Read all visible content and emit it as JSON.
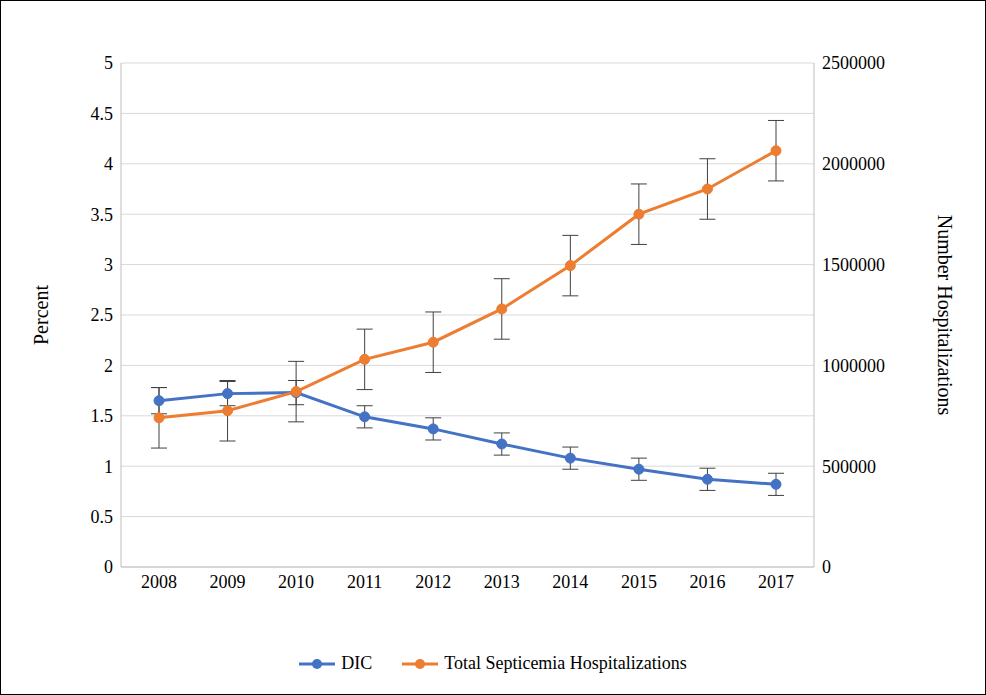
{
  "chart_data": {
    "type": "line",
    "categories": [
      "2008",
      "2009",
      "2010",
      "2011",
      "2012",
      "2013",
      "2014",
      "2015",
      "2016",
      "2017"
    ],
    "y_label": "Percent",
    "y2_label": "Number Hospitalizations",
    "ylim": [
      0,
      5
    ],
    "yticks": [
      0,
      0.5,
      1,
      1.5,
      2,
      2.5,
      3,
      3.5,
      4,
      4.5,
      5
    ],
    "y2lim": [
      0,
      2500000
    ],
    "y2ticks": [
      0,
      500000,
      1000000,
      1500000,
      2000000,
      2500000
    ],
    "grid": true,
    "legend": "bottom",
    "series": [
      {
        "name": "DIC",
        "color": "#4472c4",
        "marker": "circle",
        "values": [
          1.65,
          1.72,
          1.73,
          1.49,
          1.37,
          1.22,
          1.08,
          0.97,
          0.87,
          0.82
        ],
        "errors": [
          0.13,
          0.12,
          0.12,
          0.11,
          0.11,
          0.11,
          0.11,
          0.11,
          0.11,
          0.11
        ]
      },
      {
        "name": "Total Septicemia Hospitalizations",
        "color": "#ed7d31",
        "marker": "circle",
        "axis": "y2",
        "values": [
          740000,
          775000,
          870000,
          1030000,
          1115000,
          1280000,
          1495000,
          1750000,
          1875000,
          2065000
        ],
        "errors": [
          150000,
          150000,
          150000,
          150000,
          150000,
          150000,
          150000,
          150000,
          150000,
          150000
        ]
      }
    ]
  }
}
